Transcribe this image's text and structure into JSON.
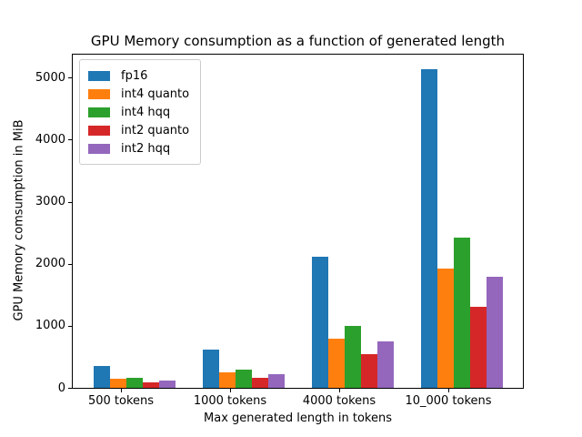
{
  "chart_data": {
    "type": "bar",
    "title": "GPU Memory consumption as a function of generated length",
    "xlabel": "Max generated length in tokens",
    "ylabel": "GPU Memory comsumption in MiB",
    "categories": [
      "500 tokens",
      "1000 tokens",
      "4000 tokens",
      "10_000 tokens"
    ],
    "series": [
      {
        "name": "fp16",
        "color": "#1f77b4",
        "values": [
          360,
          610,
          2120,
          5140
        ]
      },
      {
        "name": "int4 quanto",
        "color": "#ff7f0e",
        "values": [
          150,
          250,
          800,
          1930
        ]
      },
      {
        "name": "int4 hqq",
        "color": "#2ca02c",
        "values": [
          160,
          290,
          1000,
          2420
        ]
      },
      {
        "name": "int2 quanto",
        "color": "#d62728",
        "values": [
          90,
          165,
          550,
          1300
        ]
      },
      {
        "name": "int2 hqq",
        "color": "#9467bd",
        "values": [
          120,
          215,
          750,
          1790
        ]
      }
    ],
    "yticks": [
      0,
      1000,
      2000,
      3000,
      4000,
      5000
    ],
    "ylim": [
      0,
      5370
    ],
    "grid": false,
    "legend_position": "upper left",
    "background_color": "#ffffff",
    "spine_color": "#000000"
  }
}
